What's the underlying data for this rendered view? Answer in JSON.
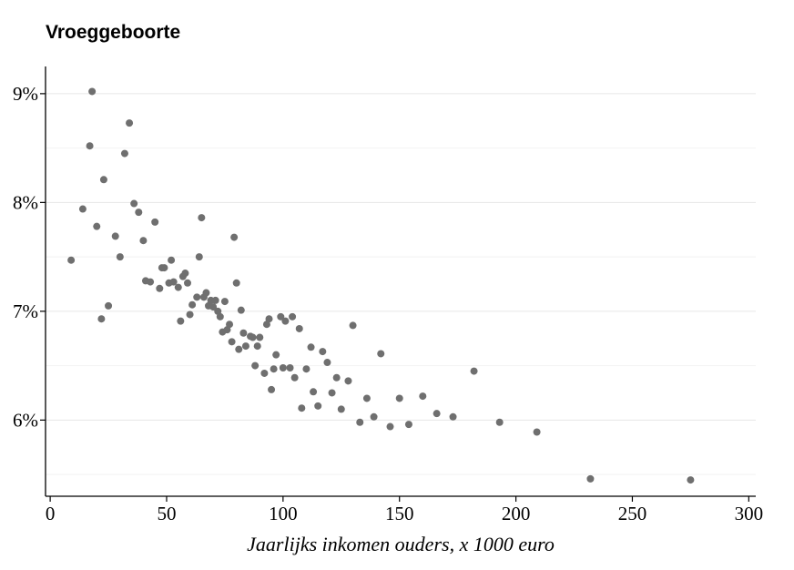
{
  "chart_data": {
    "type": "scatter",
    "title": "Vroeggeboorte",
    "xlabel": "Jaarlijks inkomen ouders, x 1000 euro",
    "ylabel": "",
    "xlim": [
      -2,
      303
    ],
    "ylim": [
      5.3,
      9.25
    ],
    "xticks": [
      0,
      50,
      100,
      150,
      200,
      250,
      300
    ],
    "xtick_labels": [
      "0",
      "50",
      "100",
      "150",
      "200",
      "250",
      "300"
    ],
    "yticks": [
      6,
      7,
      8,
      9
    ],
    "ytick_labels": [
      "6%",
      "7%",
      "8%",
      "9%"
    ],
    "minor_ygrid": [
      5.5,
      6.5,
      7.5,
      8.5
    ],
    "grid": "horizontal",
    "legend": "none",
    "marker_color": "#6f6f6f",
    "points": [
      {
        "x": 9,
        "y": 7.47
      },
      {
        "x": 14,
        "y": 7.94
      },
      {
        "x": 17,
        "y": 8.52
      },
      {
        "x": 18,
        "y": 9.02
      },
      {
        "x": 20,
        "y": 7.78
      },
      {
        "x": 22,
        "y": 6.93
      },
      {
        "x": 23,
        "y": 8.21
      },
      {
        "x": 25,
        "y": 7.05
      },
      {
        "x": 28,
        "y": 7.69
      },
      {
        "x": 30,
        "y": 7.5
      },
      {
        "x": 32,
        "y": 8.45
      },
      {
        "x": 34,
        "y": 8.73
      },
      {
        "x": 36,
        "y": 7.99
      },
      {
        "x": 38,
        "y": 7.91
      },
      {
        "x": 40,
        "y": 7.65
      },
      {
        "x": 41,
        "y": 7.28
      },
      {
        "x": 43,
        "y": 7.27
      },
      {
        "x": 45,
        "y": 7.82
      },
      {
        "x": 47,
        "y": 7.21
      },
      {
        "x": 48,
        "y": 7.4
      },
      {
        "x": 49,
        "y": 7.4
      },
      {
        "x": 51,
        "y": 7.26
      },
      {
        "x": 52,
        "y": 7.47
      },
      {
        "x": 53,
        "y": 7.27
      },
      {
        "x": 55,
        "y": 7.22
      },
      {
        "x": 56,
        "y": 6.91
      },
      {
        "x": 57,
        "y": 7.32
      },
      {
        "x": 58,
        "y": 7.35
      },
      {
        "x": 59,
        "y": 7.26
      },
      {
        "x": 60,
        "y": 6.97
      },
      {
        "x": 61,
        "y": 7.06
      },
      {
        "x": 63,
        "y": 7.13
      },
      {
        "x": 64,
        "y": 7.5
      },
      {
        "x": 65,
        "y": 7.86
      },
      {
        "x": 66,
        "y": 7.13
      },
      {
        "x": 67,
        "y": 7.17
      },
      {
        "x": 68,
        "y": 7.05
      },
      {
        "x": 69,
        "y": 7.1
      },
      {
        "x": 70,
        "y": 7.04
      },
      {
        "x": 71,
        "y": 7.1
      },
      {
        "x": 72,
        "y": 7.0
      },
      {
        "x": 73,
        "y": 6.95
      },
      {
        "x": 74,
        "y": 6.81
      },
      {
        "x": 75,
        "y": 7.09
      },
      {
        "x": 76,
        "y": 6.83
      },
      {
        "x": 77,
        "y": 6.88
      },
      {
        "x": 78,
        "y": 6.72
      },
      {
        "x": 79,
        "y": 7.68
      },
      {
        "x": 80,
        "y": 7.26
      },
      {
        "x": 81,
        "y": 6.65
      },
      {
        "x": 82,
        "y": 7.01
      },
      {
        "x": 83,
        "y": 6.8
      },
      {
        "x": 84,
        "y": 6.68
      },
      {
        "x": 86,
        "y": 6.77
      },
      {
        "x": 87,
        "y": 6.76
      },
      {
        "x": 88,
        "y": 6.5
      },
      {
        "x": 89,
        "y": 6.68
      },
      {
        "x": 90,
        "y": 6.76
      },
      {
        "x": 92,
        "y": 6.43
      },
      {
        "x": 93,
        "y": 6.88
      },
      {
        "x": 94,
        "y": 6.93
      },
      {
        "x": 95,
        "y": 6.28
      },
      {
        "x": 96,
        "y": 6.47
      },
      {
        "x": 97,
        "y": 6.6
      },
      {
        "x": 99,
        "y": 6.95
      },
      {
        "x": 100,
        "y": 6.48
      },
      {
        "x": 101,
        "y": 6.91
      },
      {
        "x": 103,
        "y": 6.48
      },
      {
        "x": 104,
        "y": 6.95
      },
      {
        "x": 105,
        "y": 6.39
      },
      {
        "x": 107,
        "y": 6.84
      },
      {
        "x": 108,
        "y": 6.11
      },
      {
        "x": 110,
        "y": 6.47
      },
      {
        "x": 112,
        "y": 6.67
      },
      {
        "x": 113,
        "y": 6.26
      },
      {
        "x": 115,
        "y": 6.13
      },
      {
        "x": 117,
        "y": 6.63
      },
      {
        "x": 119,
        "y": 6.53
      },
      {
        "x": 121,
        "y": 6.25
      },
      {
        "x": 123,
        "y": 6.39
      },
      {
        "x": 125,
        "y": 6.1
      },
      {
        "x": 128,
        "y": 6.36
      },
      {
        "x": 130,
        "y": 6.87
      },
      {
        "x": 133,
        "y": 5.98
      },
      {
        "x": 136,
        "y": 6.2
      },
      {
        "x": 139,
        "y": 6.03
      },
      {
        "x": 142,
        "y": 6.61
      },
      {
        "x": 146,
        "y": 5.94
      },
      {
        "x": 150,
        "y": 6.2
      },
      {
        "x": 154,
        "y": 5.96
      },
      {
        "x": 160,
        "y": 6.22
      },
      {
        "x": 166,
        "y": 6.06
      },
      {
        "x": 173,
        "y": 6.03
      },
      {
        "x": 182,
        "y": 6.45
      },
      {
        "x": 193,
        "y": 5.98
      },
      {
        "x": 209,
        "y": 5.89
      },
      {
        "x": 232,
        "y": 5.46
      },
      {
        "x": 275,
        "y": 5.45
      }
    ]
  }
}
